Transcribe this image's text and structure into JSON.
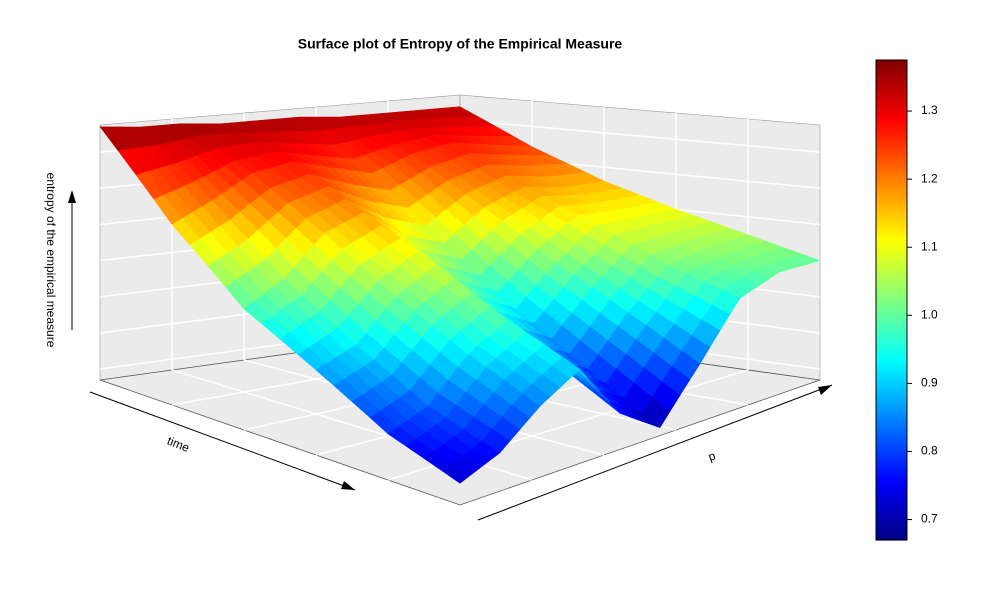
{
  "chart_data": {
    "type": "surface",
    "title": "Surface plot of Entropy of the Empirical Measure",
    "xlabel": "time",
    "ylabel": "p",
    "zlabel": "entropy of the empirical measure",
    "colormap": "jet",
    "z": [
      [
        1.37,
        1.36,
        1.36,
        1.35,
        1.35,
        1.35,
        1.34,
        1.34,
        1.34,
        1.34
      ],
      [
        1.15,
        1.2,
        1.26,
        1.28,
        1.25,
        1.22,
        1.26,
        1.28,
        1.26,
        1.24
      ],
      [
        0.98,
        1.04,
        1.14,
        1.18,
        1.1,
        1.06,
        1.14,
        1.18,
        1.16,
        1.16
      ],
      [
        0.88,
        0.92,
        1.02,
        1.08,
        0.98,
        0.92,
        1.02,
        1.1,
        1.1,
        1.1
      ],
      [
        0.78,
        0.82,
        0.92,
        0.98,
        0.86,
        0.8,
        0.92,
        1.02,
        1.04,
        1.05
      ],
      [
        0.72,
        0.76,
        0.84,
        0.9,
        0.76,
        0.69,
        0.82,
        0.96,
        1.0,
        1.0
      ]
    ],
    "zlim": [
      0.67,
      1.375
    ],
    "colorbar_ticks": [
      0.7,
      0.8,
      0.9,
      {
        "value": 1,
        "label": "1.0"
      },
      1.1,
      1.2,
      1.3
    ]
  }
}
